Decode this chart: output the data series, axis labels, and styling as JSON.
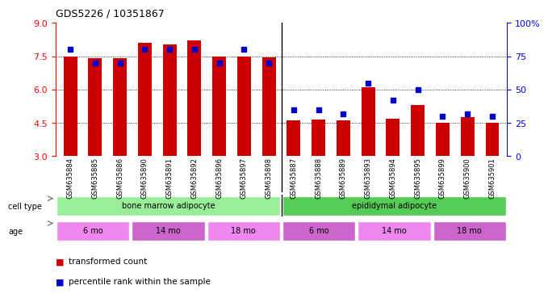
{
  "title": "GDS5226 / 10351867",
  "samples": [
    "GSM635884",
    "GSM635885",
    "GSM635886",
    "GSM635890",
    "GSM635891",
    "GSM635892",
    "GSM635896",
    "GSM635897",
    "GSM635898",
    "GSM635887",
    "GSM635888",
    "GSM635889",
    "GSM635893",
    "GSM635894",
    "GSM635895",
    "GSM635899",
    "GSM635900",
    "GSM635901"
  ],
  "red_values": [
    7.5,
    7.4,
    7.4,
    8.1,
    8.05,
    8.2,
    7.5,
    7.5,
    7.45,
    4.6,
    4.65,
    4.6,
    6.1,
    4.7,
    5.3,
    4.5,
    4.75,
    4.5
  ],
  "blue_values": [
    80,
    70,
    70,
    80,
    80,
    80,
    70,
    80,
    70,
    35,
    35,
    32,
    55,
    42,
    50,
    30,
    32,
    30
  ],
  "y_min": 3,
  "y_max": 9,
  "y_ticks_red": [
    3,
    4.5,
    6,
    7.5,
    9
  ],
  "y_ticks_blue": [
    0,
    25,
    50,
    75,
    100
  ],
  "dotted_lines_red": [
    4.5,
    6.0,
    7.5
  ],
  "cell_type_colors": [
    "#99ee99",
    "#55cc55"
  ],
  "age_colors": [
    "#ee88ee",
    "#cc66cc"
  ],
  "bar_color": "#cc0000",
  "dot_color": "#0000cc",
  "legend_red": "transformed count",
  "legend_blue": "percentile rank within the sample",
  "ct_spans": [
    [
      0,
      9,
      "bone marrow adipocyte"
    ],
    [
      9,
      18,
      "epididymal adipocyte"
    ]
  ],
  "age_spans": [
    [
      0,
      3,
      "6 mo"
    ],
    [
      3,
      6,
      "14 mo"
    ],
    [
      6,
      9,
      "18 mo"
    ],
    [
      9,
      12,
      "6 mo"
    ],
    [
      12,
      15,
      "14 mo"
    ],
    [
      15,
      18,
      "18 mo"
    ]
  ]
}
